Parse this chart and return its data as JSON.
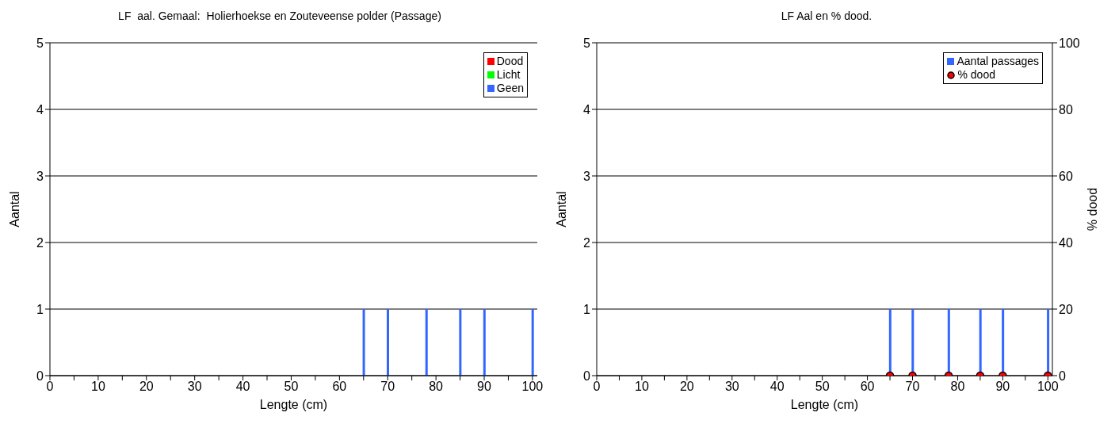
{
  "chart_data": [
    {
      "type": "bar",
      "title": "LF  aal. Gemaal:  Holierhoekse en Zouteveense polder (Passage)",
      "xlabel": "Lengte (cm)",
      "ylabel": "Aantal",
      "x": [
        65,
        70,
        78,
        85,
        90,
        100
      ],
      "series": [
        {
          "name": "Dood",
          "color": "#ff0000",
          "values": [
            0,
            0,
            0,
            0,
            0,
            0
          ]
        },
        {
          "name": "Licht",
          "color": "#00ff00",
          "values": [
            0,
            0,
            0,
            0,
            0,
            0
          ]
        },
        {
          "name": "Geen",
          "color": "#3366ff",
          "values": [
            1,
            1,
            1,
            1,
            1,
            1
          ]
        }
      ],
      "stacked": true,
      "xlim": [
        0,
        101
      ],
      "xticks": [
        0,
        {
          "value": 5,
          "label": null
        },
        10,
        {
          "value": 15,
          "label": null
        },
        20,
        {
          "value": 25,
          "label": null
        },
        30,
        {
          "value": 35,
          "label": null
        },
        40,
        {
          "value": 45,
          "label": null
        },
        50,
        {
          "value": 55,
          "label": null
        },
        60,
        {
          "value": 65,
          "label": null
        },
        70,
        {
          "value": 75,
          "label": null
        },
        80,
        {
          "value": 85,
          "label": null
        },
        90,
        {
          "value": 95,
          "label": null
        },
        100
      ],
      "ylim": [
        0,
        5
      ],
      "yticks": [
        0,
        1,
        2,
        3,
        4,
        5
      ],
      "grid": "y",
      "legend": "top right"
    },
    {
      "type": "bar",
      "title": "LF Aal en % dood.",
      "xlabel": "Lengte (cm)",
      "ylabel": "Aantal",
      "y2label": "% dood",
      "x": [
        65,
        70,
        78,
        85,
        90,
        100
      ],
      "series": [
        {
          "name": "Aantal passages",
          "color": "#3366ff",
          "values": [
            1,
            1,
            1,
            1,
            1,
            1
          ]
        },
        {
          "name": "% dood",
          "type": "scatter",
          "axis": "y2",
          "color": "#ff0000",
          "values": [
            0,
            0,
            0,
            0,
            0,
            0
          ]
        }
      ],
      "xlim": [
        0,
        101
      ],
      "xticks": [
        0,
        {
          "value": 5,
          "label": null
        },
        10,
        {
          "value": 15,
          "label": null
        },
        20,
        {
          "value": 25,
          "label": null
        },
        30,
        {
          "value": 35,
          "label": null
        },
        40,
        {
          "value": 45,
          "label": null
        },
        50,
        {
          "value": 55,
          "label": null
        },
        60,
        {
          "value": 65,
          "label": null
        },
        70,
        {
          "value": 75,
          "label": null
        },
        80,
        {
          "value": 85,
          "label": null
        },
        90,
        {
          "value": 95,
          "label": null
        },
        100
      ],
      "ylim": [
        0,
        5
      ],
      "yticks": [
        0,
        1,
        2,
        3,
        4,
        5
      ],
      "y2lim": [
        0,
        100
      ],
      "y2ticks": [
        0,
        20,
        40,
        60,
        80,
        100
      ],
      "grid": "y",
      "legend": "top right",
      "marker": "circle"
    }
  ]
}
